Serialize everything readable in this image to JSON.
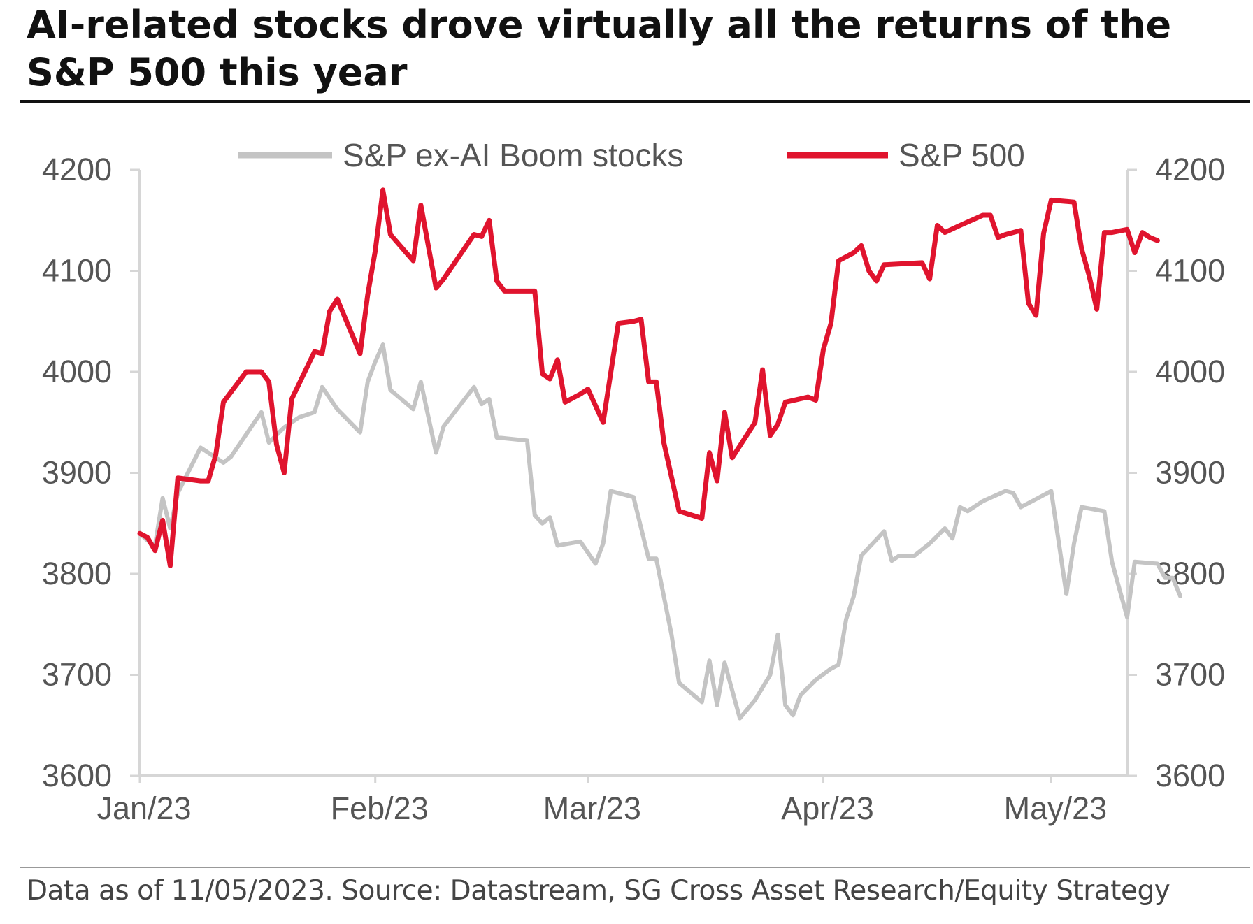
{
  "title": "AI-related stocks drove virtually all the returns of the S&P 500 this year",
  "footnote": "Data as of 11/05/2023. Source: Datastream, SG Cross Asset Research/Equity Strategy",
  "colors": {
    "sp500": "#e0142e",
    "ex_ai": "#c4c4c4",
    "axis": "#d6d6d6",
    "text": "#555555"
  },
  "chart_data": {
    "type": "line",
    "x_ticks": [
      "Jan/23",
      "Feb/23",
      "Mar/23",
      "Apr/23",
      "May/23"
    ],
    "y_left_ticks": [
      "4200",
      "4100",
      "4000",
      "3900",
      "3800",
      "3700",
      "3600"
    ],
    "y_right_ticks": [
      "4200",
      "4100",
      "4000",
      "3900",
      "3800",
      "3700",
      "3600"
    ],
    "ylim": [
      3600,
      4200
    ],
    "xlim": [
      "2023-01-01",
      "2023-05-11"
    ],
    "legend_position": "top",
    "grid": false,
    "series": [
      {
        "name": "S&P ex-AI Boom stocks",
        "color": "#c4c4c4",
        "points": [
          [
            "2023-01-01",
            3840
          ],
          [
            "2023-01-02",
            3833
          ],
          [
            "2023-01-03",
            3828
          ],
          [
            "2023-01-04",
            3875
          ],
          [
            "2023-01-05",
            3845
          ],
          [
            "2023-01-06",
            3880
          ],
          [
            "2023-01-09",
            3925
          ],
          [
            "2023-01-12",
            3910
          ],
          [
            "2023-01-13",
            3916
          ],
          [
            "2023-01-17",
            3960
          ],
          [
            "2023-01-18",
            3930
          ],
          [
            "2023-01-20",
            3945
          ],
          [
            "2023-01-22",
            3955
          ],
          [
            "2023-01-24",
            3960
          ],
          [
            "2023-01-25",
            3985
          ],
          [
            "2023-01-27",
            3963
          ],
          [
            "2023-01-30",
            3940
          ],
          [
            "2023-01-31",
            3990
          ],
          [
            "2023-02-01",
            4010
          ],
          [
            "2023-02-02",
            4027
          ],
          [
            "2023-02-03",
            3982
          ],
          [
            "2023-02-06",
            3963
          ],
          [
            "2023-02-07",
            3990
          ],
          [
            "2023-02-09",
            3920
          ],
          [
            "2023-02-10",
            3946
          ],
          [
            "2023-02-14",
            3985
          ],
          [
            "2023-02-15",
            3968
          ],
          [
            "2023-02-16",
            3973
          ],
          [
            "2023-02-17",
            3935
          ],
          [
            "2023-02-21",
            3932
          ],
          [
            "2023-02-22",
            3858
          ],
          [
            "2023-02-23",
            3850
          ],
          [
            "2023-02-24",
            3856
          ],
          [
            "2023-02-25",
            3828
          ],
          [
            "2023-02-28",
            3832
          ],
          [
            "2023-03-02",
            3810
          ],
          [
            "2023-03-03",
            3830
          ],
          [
            "2023-03-04",
            3882
          ],
          [
            "2023-03-07",
            3876
          ],
          [
            "2023-03-09",
            3815
          ],
          [
            "2023-03-10",
            3815
          ],
          [
            "2023-03-12",
            3740
          ],
          [
            "2023-03-13",
            3692
          ],
          [
            "2023-03-16",
            3673
          ],
          [
            "2023-03-17",
            3714
          ],
          [
            "2023-03-18",
            3670
          ],
          [
            "2023-03-19",
            3712
          ],
          [
            "2023-03-21",
            3657
          ],
          [
            "2023-03-23",
            3675
          ],
          [
            "2023-03-25",
            3700
          ],
          [
            "2023-03-26",
            3740
          ],
          [
            "2023-03-27",
            3670
          ],
          [
            "2023-03-28",
            3660
          ],
          [
            "2023-03-29",
            3680
          ],
          [
            "2023-03-31",
            3695
          ],
          [
            "2023-04-02",
            3706
          ],
          [
            "2023-04-03",
            3710
          ],
          [
            "2023-04-04",
            3755
          ],
          [
            "2023-04-05",
            3778
          ],
          [
            "2023-04-06",
            3818
          ],
          [
            "2023-04-09",
            3842
          ],
          [
            "2023-04-10",
            3813
          ],
          [
            "2023-04-11",
            3818
          ],
          [
            "2023-04-13",
            3818
          ],
          [
            "2023-04-15",
            3830
          ],
          [
            "2023-04-17",
            3845
          ],
          [
            "2023-04-18",
            3835
          ],
          [
            "2023-04-19",
            3866
          ],
          [
            "2023-04-20",
            3862
          ],
          [
            "2023-04-22",
            3872
          ],
          [
            "2023-04-25",
            3882
          ],
          [
            "2023-04-26",
            3880
          ],
          [
            "2023-04-27",
            3866
          ],
          [
            "2023-04-29",
            3874
          ],
          [
            "2023-05-01",
            3882
          ],
          [
            "2023-05-03",
            3780
          ],
          [
            "2023-05-04",
            3830
          ],
          [
            "2023-05-05",
            3866
          ],
          [
            "2023-05-08",
            3862
          ],
          [
            "2023-05-09",
            3812
          ],
          [
            "2023-05-11",
            3757
          ],
          [
            "2023-05-12",
            3812
          ],
          [
            "2023-05-15",
            3810
          ],
          [
            "2023-05-16",
            3796
          ],
          [
            "2023-05-17",
            3796
          ],
          [
            "2023-05-18",
            3778
          ]
        ]
      },
      {
        "name": "S&P 500",
        "color": "#e0142e",
        "points": [
          [
            "2023-01-01",
            3840
          ],
          [
            "2023-01-02",
            3836
          ],
          [
            "2023-01-03",
            3823
          ],
          [
            "2023-01-04",
            3853
          ],
          [
            "2023-01-05",
            3808
          ],
          [
            "2023-01-06",
            3895
          ],
          [
            "2023-01-09",
            3892
          ],
          [
            "2023-01-10",
            3892
          ],
          [
            "2023-01-11",
            3918
          ],
          [
            "2023-01-12",
            3970
          ],
          [
            "2023-01-15",
            4000
          ],
          [
            "2023-01-17",
            4000
          ],
          [
            "2023-01-18",
            3990
          ],
          [
            "2023-01-19",
            3928
          ],
          [
            "2023-01-20",
            3900
          ],
          [
            "2023-01-21",
            3973
          ],
          [
            "2023-01-24",
            4020
          ],
          [
            "2023-01-25",
            4018
          ],
          [
            "2023-01-26",
            4060
          ],
          [
            "2023-01-27",
            4072
          ],
          [
            "2023-01-30",
            4018
          ],
          [
            "2023-01-31",
            4076
          ],
          [
            "2023-02-01",
            4120
          ],
          [
            "2023-02-02",
            4180
          ],
          [
            "2023-02-03",
            4136
          ],
          [
            "2023-02-06",
            4110
          ],
          [
            "2023-02-07",
            4165
          ],
          [
            "2023-02-09",
            4083
          ],
          [
            "2023-02-10",
            4092
          ],
          [
            "2023-02-14",
            4136
          ],
          [
            "2023-02-15",
            4134
          ],
          [
            "2023-02-16",
            4150
          ],
          [
            "2023-02-17",
            4090
          ],
          [
            "2023-02-18",
            4080
          ],
          [
            "2023-02-22",
            4080
          ],
          [
            "2023-02-23",
            3998
          ],
          [
            "2023-02-24",
            3993
          ],
          [
            "2023-02-25",
            4012
          ],
          [
            "2023-02-26",
            3970
          ],
          [
            "2023-02-28",
            3978
          ],
          [
            "2023-03-01",
            3983
          ],
          [
            "2023-03-03",
            3950
          ],
          [
            "2023-03-05",
            4048
          ],
          [
            "2023-03-07",
            4050
          ],
          [
            "2023-03-08",
            4052
          ],
          [
            "2023-03-09",
            3990
          ],
          [
            "2023-03-10",
            3990
          ],
          [
            "2023-03-11",
            3930
          ],
          [
            "2023-03-13",
            3862
          ],
          [
            "2023-03-16",
            3855
          ],
          [
            "2023-03-17",
            3920
          ],
          [
            "2023-03-18",
            3892
          ],
          [
            "2023-03-19",
            3960
          ],
          [
            "2023-03-20",
            3915
          ],
          [
            "2023-03-23",
            3950
          ],
          [
            "2023-03-24",
            4002
          ],
          [
            "2023-03-25",
            3937
          ],
          [
            "2023-03-26",
            3948
          ],
          [
            "2023-03-27",
            3970
          ],
          [
            "2023-03-30",
            3975
          ],
          [
            "2023-03-31",
            3972
          ],
          [
            "2023-04-01",
            4022
          ],
          [
            "2023-04-02",
            4048
          ],
          [
            "2023-04-03",
            4110
          ],
          [
            "2023-04-05",
            4118
          ],
          [
            "2023-04-06",
            4125
          ],
          [
            "2023-04-07",
            4100
          ],
          [
            "2023-04-08",
            4090
          ],
          [
            "2023-04-09",
            4106
          ],
          [
            "2023-04-14",
            4108
          ],
          [
            "2023-04-15",
            4092
          ],
          [
            "2023-04-16",
            4145
          ],
          [
            "2023-04-17",
            4138
          ],
          [
            "2023-04-19",
            4145
          ],
          [
            "2023-04-22",
            4155
          ],
          [
            "2023-04-23",
            4155
          ],
          [
            "2023-04-24",
            4133
          ],
          [
            "2023-04-25",
            4136
          ],
          [
            "2023-04-27",
            4140
          ],
          [
            "2023-04-28",
            4068
          ],
          [
            "2023-04-29",
            4056
          ],
          [
            "2023-04-30",
            4137
          ],
          [
            "2023-05-01",
            4170
          ],
          [
            "2023-05-04",
            4168
          ],
          [
            "2023-05-05",
            4122
          ],
          [
            "2023-05-06",
            4095
          ],
          [
            "2023-05-07",
            4062
          ],
          [
            "2023-05-08",
            4138
          ],
          [
            "2023-05-09",
            4138
          ],
          [
            "2023-05-11",
            4141
          ],
          [
            "2023-05-12",
            4118
          ],
          [
            "2023-05-13",
            4138
          ],
          [
            "2023-05-14",
            4133
          ],
          [
            "2023-05-15",
            4130
          ]
        ]
      }
    ]
  }
}
